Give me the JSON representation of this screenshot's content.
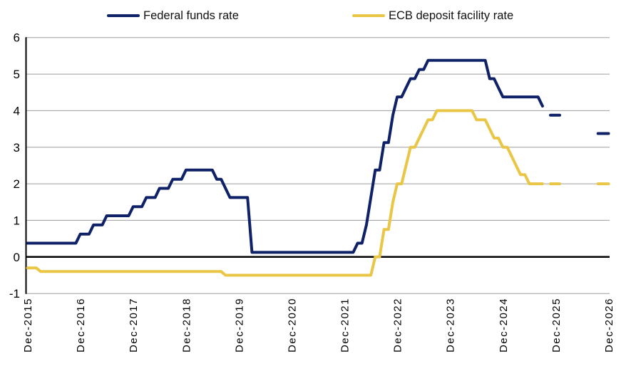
{
  "chart_data": {
    "type": "line",
    "title": "",
    "background": "#ffffff",
    "legend_position": "top",
    "colors": {
      "fed_line": "#0f2167",
      "ecb_line": "#e9c645",
      "gridline": "#9d9d9d",
      "zero_line": "#000000",
      "axis_line": "#000000",
      "text": "#000000"
    },
    "x_axis": {
      "unit": "months since Dec-2015",
      "months_span": 132,
      "tick_labels": [
        "Dec-2015",
        "Dec-2016",
        "Dec-2017",
        "Dec-2018",
        "Dec-2019",
        "Dec-2020",
        "Dec-2021",
        "Dec-2022",
        "Dec-2023",
        "Dec-2024",
        "Dec-2025",
        "Dec-2026"
      ],
      "tick_month_positions": [
        0,
        12,
        24,
        36,
        48,
        60,
        72,
        84,
        96,
        108,
        120,
        132
      ],
      "label_rotation_deg": -90
    },
    "y_axis": {
      "min": -1,
      "max": 6,
      "tick_values": [
        6,
        5,
        4,
        3,
        2,
        1,
        0,
        -1
      ],
      "tick_labels": [
        "6",
        "5",
        "4",
        "3",
        "2",
        "1",
        "0",
        "-1"
      ],
      "grid": true
    },
    "series": [
      {
        "id": "fed-funds",
        "name": "Federal funds rate",
        "color": "#0f2167",
        "unit": "percent",
        "solid_points": [
          [
            0,
            0.375
          ],
          [
            11,
            0.375
          ],
          [
            12,
            0.625
          ],
          [
            14,
            0.625
          ],
          [
            15,
            0.875
          ],
          [
            17,
            0.875
          ],
          [
            18,
            1.125
          ],
          [
            23,
            1.125
          ],
          [
            24,
            1.375
          ],
          [
            26,
            1.375
          ],
          [
            27,
            1.625
          ],
          [
            29,
            1.625
          ],
          [
            30,
            1.875
          ],
          [
            32,
            1.875
          ],
          [
            33,
            2.125
          ],
          [
            35,
            2.125
          ],
          [
            36,
            2.375
          ],
          [
            42,
            2.375
          ],
          [
            43,
            2.125
          ],
          [
            44,
            2.125
          ],
          [
            45,
            1.875
          ],
          [
            46,
            1.625
          ],
          [
            50,
            1.625
          ],
          [
            51,
            0.125
          ],
          [
            74,
            0.125
          ],
          [
            75,
            0.375
          ],
          [
            76,
            0.375
          ],
          [
            77,
            0.875
          ],
          [
            78,
            1.625
          ],
          [
            79,
            2.375
          ],
          [
            80,
            2.375
          ],
          [
            81,
            3.125
          ],
          [
            82,
            3.125
          ],
          [
            83,
            3.875
          ],
          [
            84,
            4.375
          ],
          [
            85,
            4.375
          ],
          [
            86,
            4.625
          ],
          [
            87,
            4.875
          ],
          [
            88,
            4.875
          ],
          [
            89,
            5.125
          ],
          [
            90,
            5.125
          ],
          [
            91,
            5.375
          ],
          [
            104,
            5.375
          ],
          [
            105,
            4.875
          ],
          [
            106,
            4.875
          ],
          [
            107,
            4.625
          ],
          [
            108,
            4.375
          ],
          [
            116,
            4.375
          ],
          [
            117,
            4.125
          ]
        ],
        "dashed_segments": [
          [
            118.8,
            120.9,
            3.875
          ],
          [
            129.6,
            132,
            3.375
          ]
        ]
      },
      {
        "id": "ecb-deposit",
        "name": "ECB deposit facility rate",
        "color": "#e9c645",
        "unit": "percent",
        "solid_points": [
          [
            0,
            -0.3
          ],
          [
            2,
            -0.3
          ],
          [
            3,
            -0.4
          ],
          [
            44,
            -0.4
          ],
          [
            45,
            -0.5
          ],
          [
            78,
            -0.5
          ],
          [
            79,
            0.0
          ],
          [
            80,
            0.0
          ],
          [
            81,
            0.75
          ],
          [
            82,
            0.75
          ],
          [
            83,
            1.5
          ],
          [
            84,
            2.0
          ],
          [
            85,
            2.0
          ],
          [
            86,
            2.5
          ],
          [
            87,
            3.0
          ],
          [
            88,
            3.0
          ],
          [
            89,
            3.25
          ],
          [
            90,
            3.5
          ],
          [
            91,
            3.75
          ],
          [
            92,
            3.75
          ],
          [
            93,
            4.0
          ],
          [
            101,
            4.0
          ],
          [
            102,
            3.75
          ],
          [
            104,
            3.75
          ],
          [
            105,
            3.5
          ],
          [
            106,
            3.25
          ],
          [
            107,
            3.25
          ],
          [
            108,
            3.0
          ],
          [
            109,
            3.0
          ],
          [
            110,
            2.75
          ],
          [
            111,
            2.5
          ],
          [
            112,
            2.25
          ],
          [
            113,
            2.25
          ],
          [
            114,
            2.0
          ],
          [
            117,
            2.0
          ]
        ],
        "dashed_segments": [
          [
            118.8,
            120.9,
            2.0
          ],
          [
            129.6,
            132,
            2.0
          ]
        ]
      }
    ]
  }
}
